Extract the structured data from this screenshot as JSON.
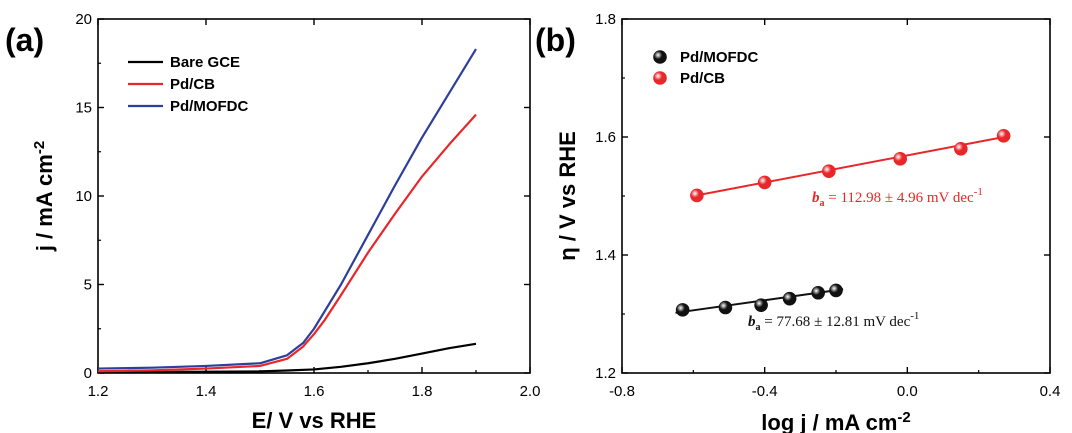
{
  "chart_data": [
    {
      "panel_label": "(a)",
      "type": "line",
      "xlabel": "E/ V vs RHE",
      "ylabel_main": "j / mA cm",
      "ylabel_sup": "-2",
      "xlim": [
        1.2,
        2.0
      ],
      "ylim": [
        0,
        20
      ],
      "xticks": [
        1.2,
        1.4,
        1.6,
        1.8,
        2.0
      ],
      "xtick_labels": [
        "1.2",
        "1.4",
        "1.6",
        "1.8",
        "2.0"
      ],
      "yticks": [
        0,
        5,
        10,
        15,
        20
      ],
      "ytick_labels": [
        "0",
        "5",
        "10",
        "15",
        "20"
      ],
      "legend_position": "top-left",
      "series": [
        {
          "name": "Bare GCE",
          "color": "#000000",
          "x": [
            1.2,
            1.3,
            1.4,
            1.5,
            1.55,
            1.6,
            1.65,
            1.7,
            1.75,
            1.8,
            1.85,
            1.9
          ],
          "y": [
            0.05,
            0.06,
            0.07,
            0.09,
            0.14,
            0.2,
            0.35,
            0.55,
            0.8,
            1.1,
            1.4,
            1.65
          ]
        },
        {
          "name": "Pd/CB",
          "color": "#e8272a",
          "x": [
            1.2,
            1.3,
            1.4,
            1.5,
            1.55,
            1.58,
            1.6,
            1.62,
            1.65,
            1.7,
            1.75,
            1.8,
            1.85,
            1.9
          ],
          "y": [
            0.1,
            0.15,
            0.25,
            0.4,
            0.8,
            1.5,
            2.2,
            3.0,
            4.4,
            6.8,
            9.0,
            11.1,
            12.9,
            14.6
          ]
        },
        {
          "name": "Pd/MOFDC",
          "color": "#2d3f9b",
          "x": [
            1.2,
            1.3,
            1.4,
            1.5,
            1.55,
            1.58,
            1.6,
            1.62,
            1.65,
            1.7,
            1.75,
            1.8,
            1.85,
            1.9
          ],
          "y": [
            0.25,
            0.3,
            0.4,
            0.55,
            1.0,
            1.7,
            2.5,
            3.5,
            5.0,
            7.8,
            10.6,
            13.3,
            15.8,
            18.3
          ]
        }
      ]
    },
    {
      "panel_label": "(b)",
      "type": "scatter",
      "xlabel_main": "log j / mA cm",
      "xlabel_sup": "-2",
      "ylabel": "η / V vs RHE",
      "xlim": [
        -0.8,
        0.4
      ],
      "ylim": [
        1.2,
        1.8
      ],
      "xticks": [
        -0.8,
        -0.4,
        0.0,
        0.4
      ],
      "xtick_labels": [
        "-0.8",
        "-0.4",
        "0.0",
        "0.4"
      ],
      "yticks": [
        1.2,
        1.4,
        1.6,
        1.8
      ],
      "ytick_labels": [
        "1.2",
        "1.4",
        "1.6",
        "1.8"
      ],
      "legend_position": "top-left",
      "series": [
        {
          "name": "Pd/MOFDC",
          "color": "#111111",
          "x": [
            -0.63,
            -0.51,
            -0.41,
            -0.33,
            -0.25,
            -0.2
          ],
          "y": [
            1.307,
            1.311,
            1.315,
            1.326,
            1.336,
            1.34
          ],
          "fit": {
            "x": [
              -0.65,
              -0.18
            ],
            "y": [
              1.302,
              1.342
            ]
          },
          "annotation": {
            "b": "b",
            "sub": "a",
            "text": " = 77.68 ± 12.81 mV dec",
            "sup": "-1"
          }
        },
        {
          "name": "Pd/CB",
          "color": "#e8272a",
          "x": [
            -0.59,
            -0.4,
            -0.22,
            -0.02,
            0.15,
            0.27
          ],
          "y": [
            1.501,
            1.523,
            1.542,
            1.563,
            1.58,
            1.602
          ],
          "fit": {
            "x": [
              -0.6,
              0.28
            ],
            "y": [
              1.5,
              1.601
            ]
          },
          "annotation": {
            "b": "b",
            "sub": "a",
            "text": " = 112.98 ± 4.96 mV dec",
            "sup": "-1"
          }
        }
      ]
    }
  ]
}
